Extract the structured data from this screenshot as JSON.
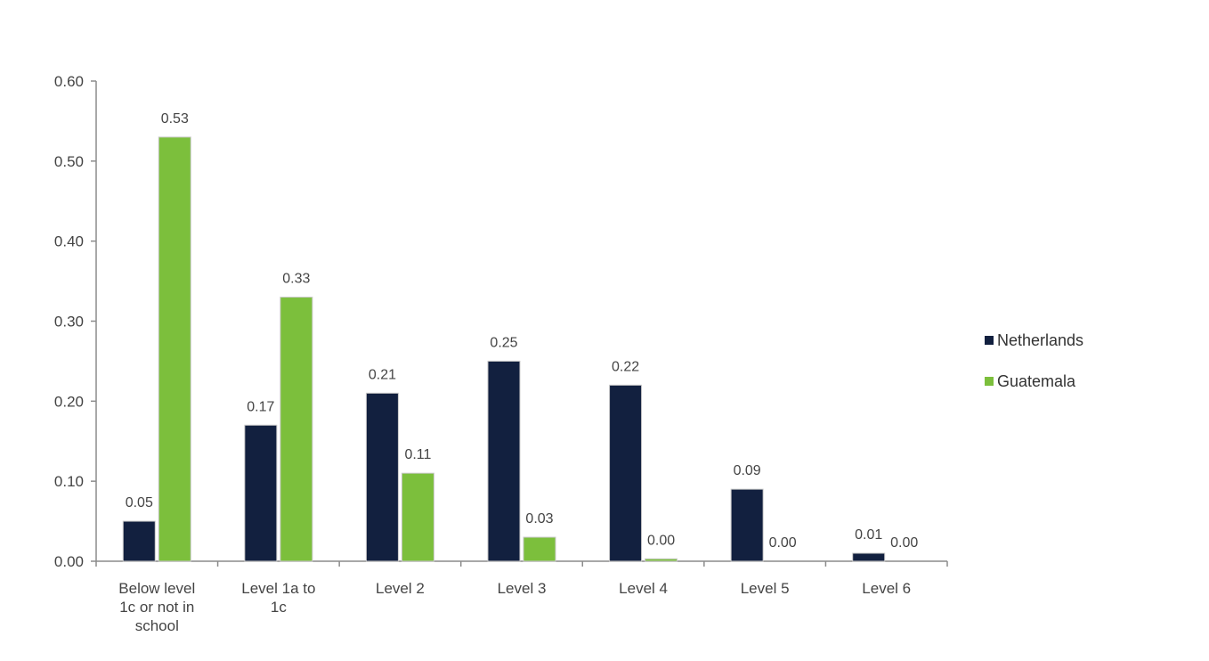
{
  "chart_data": {
    "type": "bar",
    "categories": [
      [
        "Below level",
        "1c or not in",
        "school"
      ],
      [
        "Level 1a to",
        "1c"
      ],
      [
        "Level 2"
      ],
      [
        "Level 3"
      ],
      [
        "Level 4"
      ],
      [
        "Level 5"
      ],
      [
        "Level 6"
      ]
    ],
    "series": [
      {
        "name": "Netherlands",
        "color": "#12203f",
        "values": [
          0.05,
          0.17,
          0.21,
          0.25,
          0.22,
          0.09,
          0.01
        ],
        "labels": [
          "0.05",
          "0.17",
          "0.21",
          "0.25",
          "0.22",
          "0.09",
          "0.01"
        ]
      },
      {
        "name": "Guatemala",
        "color": "#7cbf3c",
        "values": [
          0.53,
          0.33,
          0.11,
          0.03,
          0.003,
          0.0,
          0.0
        ],
        "labels": [
          "0.53",
          "0.33",
          "0.11",
          "0.03",
          "0.00",
          "0.00",
          "0.00"
        ]
      }
    ],
    "yticks": [
      "0.00",
      "0.10",
      "0.20",
      "0.30",
      "0.40",
      "0.50",
      "0.60"
    ],
    "ylim": [
      0,
      0.6
    ],
    "legend": "right",
    "grid": false
  }
}
